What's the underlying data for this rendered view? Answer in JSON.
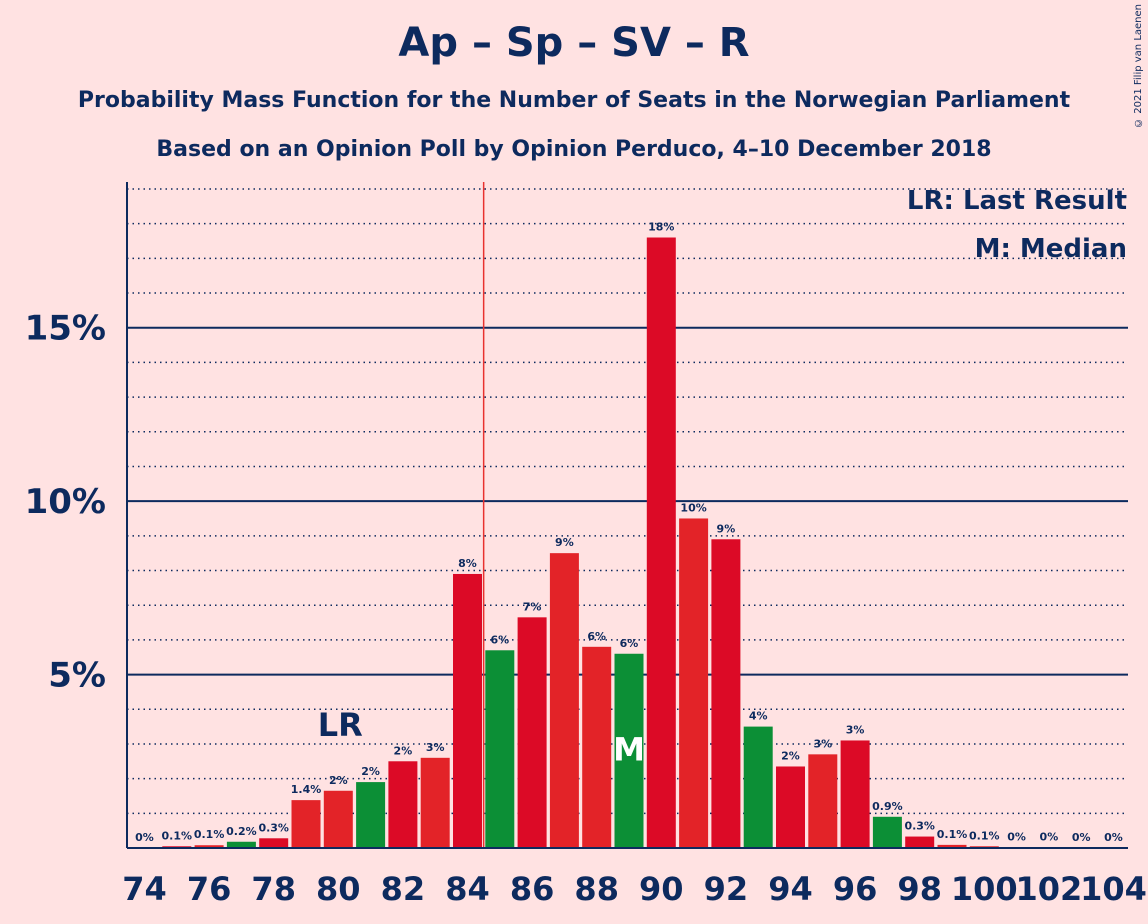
{
  "title": "Ap – Sp – SV – R",
  "subtitle": "Probability Mass Function for the Number of Seats in the Norwegian Parliament",
  "subtitle2": "Based on an Opinion Poll by Opinion Perduco, 4–10 December 2018",
  "copyright": "© 2021 Filip van Laenen",
  "legend": {
    "last_result": "LR: Last Result",
    "median": "M: Median",
    "lr_marker": "LR",
    "m_marker": "M"
  },
  "colors": {
    "background": "#FFE2E2",
    "red_dark": "#DC0A26",
    "red": "#E32328",
    "green": "#0C8F36",
    "axis": "#0D2A5E",
    "majority_line": "#E8312F"
  },
  "chart_data": {
    "type": "bar",
    "x": [
      74,
      75,
      76,
      77,
      78,
      79,
      80,
      81,
      82,
      83,
      84,
      85,
      86,
      87,
      88,
      89,
      90,
      91,
      92,
      93,
      94,
      95,
      96,
      97,
      98,
      99,
      100,
      101,
      102,
      103,
      104
    ],
    "values": [
      0,
      0.05,
      0.08,
      0.18,
      0.28,
      1.38,
      1.65,
      1.9,
      2.5,
      2.6,
      7.9,
      5.7,
      6.65,
      8.5,
      5.8,
      5.6,
      17.6,
      9.5,
      8.9,
      3.5,
      2.35,
      2.7,
      3.1,
      0.9,
      0.33,
      0.09,
      0.05,
      0.02,
      0.01,
      0.0,
      0.0
    ],
    "labels": [
      "0%",
      "0.1%",
      "0.1%",
      "0.2%",
      "0.3%",
      "1.4%",
      "2%",
      "2%",
      "2%",
      "3%",
      "8%",
      "6%",
      "7%",
      "9%",
      "6%",
      "6%",
      "18%",
      "10%",
      "9%",
      "4%",
      "2%",
      "3%",
      "3%",
      "0.9%",
      "0.3%",
      "0.1%",
      "0.1%",
      "0%",
      "0%",
      "0%",
      "0%"
    ],
    "bar_colors": [
      "red",
      "red_dark",
      "red",
      "green",
      "red_dark",
      "red",
      "red",
      "green",
      "red_dark",
      "red",
      "red_dark",
      "green",
      "red_dark",
      "red",
      "red",
      "green",
      "red_dark",
      "red",
      "red_dark",
      "green",
      "red_dark",
      "red",
      "red_dark",
      "green",
      "red_dark",
      "red",
      "red",
      "red",
      "red",
      "red",
      "red"
    ],
    "x_tick_labels": [
      "74",
      "76",
      "78",
      "80",
      "82",
      "84",
      "86",
      "88",
      "90",
      "92",
      "94",
      "96",
      "98",
      "100",
      "102",
      "104"
    ],
    "y_tick_labels": [
      "5%",
      "10%",
      "15%"
    ],
    "y_ticks": [
      5,
      10,
      15
    ],
    "ylim": [
      0,
      19.2
    ],
    "minor_grid_step": 1,
    "last_result_seat": 80,
    "median_seat": 89,
    "majority_after_seat": 84
  }
}
